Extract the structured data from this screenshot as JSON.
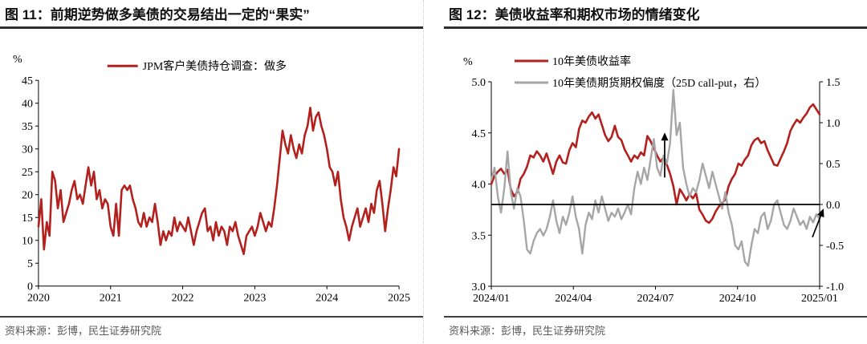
{
  "panels": [
    {
      "title": "图 11：前期逆势做多美债的交易结出一定的“果实”",
      "source": "资料来源：彭博，民生证券研究院"
    },
    {
      "title": "图 12：美债收益率和期权市场的情绪变化",
      "source": "资料来源：彭博，民生证券研究院"
    }
  ],
  "colors": {
    "red_line": "#B2211D",
    "gray_line": "#A6A6A6",
    "axis": "#000000",
    "zero_line": "#000000",
    "source_text": "#595959",
    "title_underline": "#2e2e2e"
  },
  "chart_data": [
    {
      "type": "line",
      "title": "图 11：前期逆势做多美债的交易结出一定的“果实”",
      "unit_label": "%",
      "legend_position": "top",
      "grid": false,
      "x_range_labels": [
        "2020",
        "2025"
      ],
      "x_ticks": [
        [
          "2020",
          0
        ],
        [
          "2021",
          0.2
        ],
        [
          "2022",
          0.4
        ],
        [
          "2023",
          0.6
        ],
        [
          "2024",
          0.8
        ],
        [
          "2025",
          1
        ]
      ],
      "left_ylim": [
        0,
        45
      ],
      "left_y_ticks": [
        [
          "0",
          0
        ],
        [
          "5",
          5
        ],
        [
          "10",
          10
        ],
        [
          "15",
          15
        ],
        [
          "20",
          20
        ],
        [
          "25",
          25
        ],
        [
          "30",
          30
        ],
        [
          "35",
          35
        ],
        [
          "40",
          40
        ],
        [
          "45",
          45
        ]
      ],
      "series": [
        {
          "name": "JPM客户美债持仓调查：做多",
          "axis": "left",
          "color": "#B2211D",
          "width": 2.6,
          "values": [
            13,
            19,
            8,
            14,
            11,
            25,
            23,
            17,
            21,
            14,
            16,
            18,
            21,
            23,
            19,
            20,
            18,
            22,
            26,
            22,
            25,
            19,
            21,
            17,
            19,
            18,
            13,
            11,
            18,
            11,
            21,
            22,
            21,
            22,
            19,
            17,
            14,
            13,
            16,
            13,
            15,
            14,
            18,
            14,
            9,
            12,
            10,
            12,
            11,
            15,
            12,
            14,
            13,
            12,
            15,
            12,
            9,
            12,
            14,
            16,
            17,
            12,
            13,
            10,
            14,
            11,
            13,
            12,
            9,
            13,
            12,
            14,
            11,
            9,
            7,
            11,
            12,
            13,
            11,
            13,
            16,
            14,
            12,
            14,
            13,
            17,
            22,
            28,
            34,
            31,
            29,
            33,
            30,
            28,
            31,
            29,
            33,
            35,
            39,
            34,
            37,
            38,
            35,
            33,
            30,
            26,
            25,
            22,
            25,
            19,
            15,
            13,
            10,
            13,
            15,
            17,
            13,
            15,
            17,
            14,
            18,
            16,
            21,
            23,
            18,
            12,
            17,
            21,
            26,
            24,
            30
          ]
        }
      ]
    },
    {
      "type": "line",
      "title": "图 12：美债收益率和期权市场的情绪变化",
      "unit_label": "%",
      "legend_position": "top",
      "grid": false,
      "x_range_labels": [
        "2024/01",
        "2025/01"
      ],
      "x_ticks": [
        [
          "2024/01",
          0
        ],
        [
          "2024/04",
          0.25
        ],
        [
          "2024/07",
          0.5
        ],
        [
          "2024/10",
          0.75
        ],
        [
          "2025/01",
          1
        ]
      ],
      "left_ylim": [
        3.0,
        5.0
      ],
      "left_y_ticks": [
        [
          "3.0",
          3.0
        ],
        [
          "3.5",
          3.5
        ],
        [
          "4.0",
          4.0
        ],
        [
          "4.5",
          4.5
        ],
        [
          "5.0",
          5.0
        ]
      ],
      "right_ylim": [
        -1.0,
        1.5
      ],
      "right_y_ticks": [
        [
          "-1.0",
          -1.0
        ],
        [
          "-0.5",
          -0.5
        ],
        [
          "0.0",
          0.0
        ],
        [
          "0.5",
          0.5
        ],
        [
          "1.0",
          1.0
        ],
        [
          "1.5",
          1.5
        ]
      ],
      "zero_line": {
        "axis": "right",
        "value": 0.0,
        "color": "#000000"
      },
      "annotations": [
        {
          "shape": "arrow",
          "axis": "right",
          "x_from": 0.528,
          "y_from": 0.33,
          "x_to": 0.528,
          "y_to": 0.88
        },
        {
          "shape": "arrow",
          "axis": "right",
          "x_from": 0.978,
          "y_from": -0.4,
          "x_to": 1.012,
          "y_to": -0.05
        }
      ],
      "series": [
        {
          "name": "10年美债收益率",
          "axis": "left",
          "color": "#B2211D",
          "width": 2.6,
          "values": [
            4.0,
            4.08,
            4.12,
            4.15,
            4.1,
            4.14,
            3.95,
            3.88,
            3.92,
            4.05,
            4.1,
            4.17,
            4.28,
            4.26,
            4.32,
            4.28,
            4.22,
            4.3,
            4.2,
            4.1,
            4.22,
            4.28,
            4.21,
            4.2,
            4.33,
            4.4,
            4.36,
            4.54,
            4.62,
            4.6,
            4.66,
            4.7,
            4.64,
            4.68,
            4.58,
            4.48,
            4.42,
            4.46,
            4.57,
            4.46,
            4.43,
            4.34,
            4.28,
            4.22,
            4.28,
            4.25,
            4.31,
            4.28,
            4.47,
            4.42,
            4.35,
            4.28,
            4.22,
            4.26,
            4.19,
            4.1,
            3.98,
            3.8,
            3.95,
            3.9,
            3.84,
            3.9,
            3.86,
            3.91,
            3.75,
            3.7,
            3.64,
            3.62,
            3.66,
            3.73,
            3.78,
            3.81,
            3.85,
            3.98,
            4.05,
            4.1,
            4.2,
            4.18,
            4.24,
            4.28,
            4.38,
            4.43,
            4.45,
            4.4,
            4.42,
            4.33,
            4.26,
            4.19,
            4.18,
            4.25,
            4.32,
            4.4,
            4.52,
            4.58,
            4.63,
            4.6,
            4.65,
            4.69,
            4.75,
            4.78,
            4.73,
            4.68
          ]
        },
        {
          "name": "10年美债期货期权偏度（25D call-put，右）",
          "axis": "right",
          "color": "#A6A6A6",
          "width": 2.4,
          "values": [
            0.3,
            0.45,
            0.1,
            -0.1,
            0.2,
            0.65,
            0.15,
            -0.05,
            0.2,
            0.1,
            -0.2,
            -0.55,
            -0.6,
            -0.45,
            -0.35,
            -0.3,
            -0.38,
            -0.3,
            -0.15,
            0.05,
            -0.2,
            -0.35,
            -0.15,
            -0.25,
            -0.1,
            0.1,
            -0.15,
            -0.3,
            -0.6,
            -0.25,
            -0.1,
            -0.18,
            0.05,
            -0.1,
            0.1,
            -0.05,
            -0.2,
            -0.1,
            -0.15,
            -0.05,
            -0.18,
            -0.1,
            0.0,
            -0.12,
            0.2,
            0.4,
            0.25,
            0.45,
            0.3,
            0.55,
            0.8,
            0.45,
            0.35,
            0.6,
            0.5,
            0.75,
            1.4,
            0.85,
            1.0,
            0.45,
            0.25,
            0.1,
            0.2,
            0.15,
            0.3,
            0.5,
            0.35,
            0.2,
            0.4,
            0.25,
            0.1,
            -0.05,
            0.15,
            -0.1,
            -0.25,
            -0.5,
            -0.55,
            -0.45,
            -0.7,
            -0.75,
            -0.5,
            -0.3,
            -0.35,
            -0.15,
            -0.1,
            -0.3,
            -0.2,
            0.0,
            0.05,
            -0.1,
            -0.25,
            -0.3,
            -0.2,
            -0.05,
            -0.15,
            -0.25,
            -0.2,
            -0.3,
            -0.15,
            -0.22,
            -0.12,
            -0.18
          ]
        }
      ]
    }
  ]
}
